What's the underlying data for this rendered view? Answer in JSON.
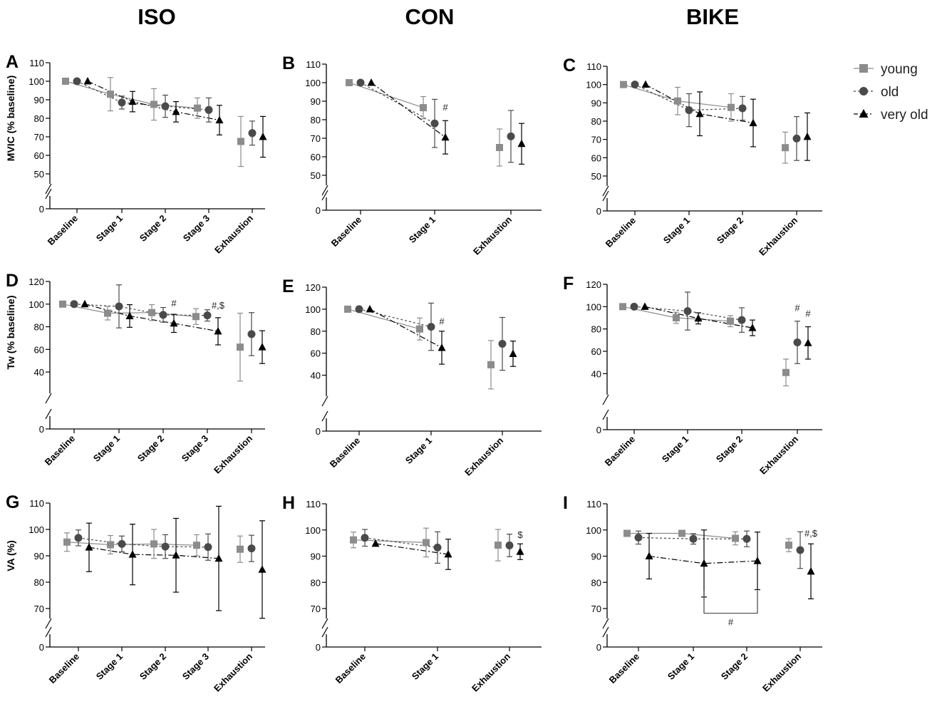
{
  "column_titles": [
    "ISO",
    "CON",
    "BIKE"
  ],
  "legend": {
    "entries": [
      {
        "label": "young",
        "marker": "square",
        "color": "#8c8c8c"
      },
      {
        "label": "old",
        "marker": "circle",
        "color": "#4a4a4a"
      },
      {
        "label": "very old",
        "marker": "triangle",
        "color": "#000000"
      }
    ]
  },
  "colors": {
    "young": "#8c8c8c",
    "old": "#4a4a4a",
    "very_old": "#000000"
  },
  "chart_data": [
    {
      "panel": "A",
      "type": "line",
      "ylabel": "MVIC (% baseline)",
      "axis_break": true,
      "ylim": [
        50,
        110
      ],
      "yticks": [
        0,
        50,
        60,
        70,
        80,
        90,
        100,
        110
      ],
      "categories": [
        "Baseline",
        "Stage 1",
        "Stage 2",
        "Stage 3",
        "Exhaustion"
      ],
      "series": [
        {
          "name": "young",
          "values": [
            100,
            93,
            87.5,
            85.5,
            67.5
          ],
          "errors": [
            0,
            9,
            8.5,
            5.5,
            13.5
          ]
        },
        {
          "name": "old",
          "values": [
            100,
            88.5,
            86.5,
            84.5,
            72
          ],
          "errors": [
            0,
            3.5,
            6,
            6.5,
            6.5
          ]
        },
        {
          "name": "very old",
          "values": [
            100,
            89,
            83.5,
            79,
            70
          ],
          "errors": [
            0,
            5.5,
            5.5,
            8,
            11
          ]
        }
      ],
      "annotations": []
    },
    {
      "panel": "B",
      "type": "line",
      "ylabel": "",
      "axis_break": true,
      "ylim": [
        50,
        110
      ],
      "yticks": [
        0,
        50,
        60,
        70,
        80,
        90,
        100,
        110
      ],
      "categories": [
        "Baseline",
        "Stage 1",
        "Exhaustion"
      ],
      "series": [
        {
          "name": "young",
          "values": [
            100,
            86.5,
            65
          ],
          "errors": [
            0,
            6,
            10
          ]
        },
        {
          "name": "old",
          "values": [
            100,
            78,
            71
          ],
          "errors": [
            0,
            13,
            14
          ]
        },
        {
          "name": "very old",
          "values": [
            100,
            70.5,
            67
          ],
          "errors": [
            0,
            9,
            11
          ]
        }
      ],
      "annotations": [
        {
          "text": "#",
          "category": 1,
          "series": 2,
          "value": 85
        }
      ]
    },
    {
      "panel": "C",
      "type": "line",
      "ylabel": "",
      "axis_break": true,
      "ylim": [
        50,
        110
      ],
      "yticks": [
        0,
        50,
        60,
        70,
        80,
        90,
        100,
        110
      ],
      "categories": [
        "Baseline",
        "Stage 1",
        "Stage 2",
        "Exhaustion"
      ],
      "series": [
        {
          "name": "young",
          "values": [
            100,
            91,
            87.5,
            65.5
          ],
          "errors": [
            0,
            7.5,
            7.5,
            8.5
          ]
        },
        {
          "name": "old",
          "values": [
            100,
            86,
            87,
            70.5
          ],
          "errors": [
            0,
            9,
            6.5,
            12
          ]
        },
        {
          "name": "very old",
          "values": [
            100,
            84,
            79,
            71.5
          ],
          "errors": [
            0,
            12,
            13,
            13
          ]
        }
      ],
      "annotations": []
    },
    {
      "panel": "D",
      "type": "line",
      "ylabel": "Tw (% baseline)",
      "axis_break": true,
      "ylim": [
        30,
        120
      ],
      "yticks": [
        0,
        40,
        60,
        80,
        100,
        120
      ],
      "categories": [
        "Baseline",
        "Stage 1",
        "Stage 2",
        "Stage 3",
        "Exhaustion"
      ],
      "series": [
        {
          "name": "young",
          "values": [
            100,
            92,
            92.5,
            89,
            62
          ],
          "errors": [
            0,
            6,
            7,
            7,
            30
          ]
        },
        {
          "name": "old",
          "values": [
            100,
            98,
            90.5,
            90,
            73.5
          ],
          "errors": [
            0,
            19,
            6.5,
            5,
            19
          ]
        },
        {
          "name": "very old",
          "values": [
            100,
            89.5,
            83,
            76,
            62
          ],
          "errors": [
            0,
            10,
            8,
            12,
            14.5
          ]
        }
      ],
      "annotations": [
        {
          "text": "#",
          "category": 2,
          "series": 2,
          "value": 98
        },
        {
          "text": "#,$",
          "category": 3,
          "series": 2,
          "value": 96
        }
      ]
    },
    {
      "panel": "E",
      "type": "line",
      "ylabel": "",
      "axis_break": true,
      "ylim": [
        30,
        120
      ],
      "yticks": [
        0,
        40,
        60,
        80,
        100,
        120
      ],
      "categories": [
        "Baseline",
        "Stage 1",
        "Exhaustion"
      ],
      "series": [
        {
          "name": "young",
          "values": [
            100,
            82,
            49.5
          ],
          "errors": [
            0,
            10,
            22
          ]
        },
        {
          "name": "old",
          "values": [
            100,
            84,
            68.5
          ],
          "errors": [
            0,
            21.5,
            24
          ]
        },
        {
          "name": "very old",
          "values": [
            100,
            65,
            59.5
          ],
          "errors": [
            0,
            15,
            11.5
          ]
        }
      ],
      "annotations": [
        {
          "text": "#",
          "category": 1,
          "series": 2,
          "value": 86
        }
      ]
    },
    {
      "panel": "F",
      "type": "line",
      "ylabel": "",
      "axis_break": true,
      "ylim": [
        30,
        120
      ],
      "yticks": [
        0,
        40,
        60,
        80,
        100,
        120
      ],
      "categories": [
        "Baseline",
        "Stage 1",
        "Stage 2",
        "Exhaustion"
      ],
      "series": [
        {
          "name": "young",
          "values": [
            100,
            90,
            87,
            41
          ],
          "errors": [
            0,
            5,
            5,
            12
          ]
        },
        {
          "name": "old",
          "values": [
            100,
            96,
            88,
            68
          ],
          "errors": [
            0,
            17,
            11,
            19
          ]
        },
        {
          "name": "very old",
          "values": [
            100,
            89.5,
            81,
            67.5
          ],
          "errors": [
            0,
            5,
            7,
            14.5
          ]
        }
      ],
      "annotations": [
        {
          "text": "#",
          "category": 3,
          "series": 1,
          "value": 96
        },
        {
          "text": "#",
          "category": 3,
          "series": 2,
          "value": 91
        }
      ]
    },
    {
      "panel": "G",
      "type": "line",
      "ylabel": "VA (%)",
      "axis_break": true,
      "ylim": [
        70,
        110
      ],
      "yticks": [
        0,
        70,
        80,
        90,
        100,
        110
      ],
      "categories": [
        "Baseline",
        "Stage 1",
        "Stage 2",
        "Stage 3",
        "Exhaustion"
      ],
      "series": [
        {
          "name": "young",
          "values": [
            95.2,
            94.2,
            94.5,
            94,
            92.5
          ],
          "errors": [
            3.5,
            3.5,
            5.5,
            4,
            5
          ]
        },
        {
          "name": "old",
          "values": [
            96.8,
            94.5,
            93.5,
            93.3,
            92.8
          ],
          "errors": [
            3,
            3,
            4.5,
            5,
            5
          ]
        },
        {
          "name": "very old",
          "values": [
            93.2,
            90.5,
            90.2,
            89,
            84.8
          ],
          "errors": [
            9.2,
            11.5,
            14,
            19.8,
            18.5
          ]
        }
      ],
      "annotations": []
    },
    {
      "panel": "H",
      "type": "line",
      "ylabel": "",
      "axis_break": true,
      "ylim": [
        70,
        110
      ],
      "yticks": [
        0,
        70,
        80,
        90,
        100,
        110
      ],
      "categories": [
        "Baseline",
        "Stage 1",
        "Exhaustion"
      ],
      "series": [
        {
          "name": "young",
          "values": [
            96.2,
            95.2,
            94.2
          ],
          "errors": [
            3,
            5.5,
            6
          ]
        },
        {
          "name": "old",
          "values": [
            97,
            93.3,
            94.1
          ],
          "errors": [
            3.2,
            6,
            4.3
          ]
        },
        {
          "name": "very old",
          "values": [
            94.8,
            90.7,
            91.7
          ],
          "errors": [
            0,
            5.8,
            3
          ]
        }
      ],
      "annotations": [
        {
          "text": "$",
          "category": 2,
          "series": 2,
          "value": 97
        }
      ]
    },
    {
      "panel": "I",
      "type": "line",
      "ylabel": "",
      "axis_break": true,
      "ylim": [
        70,
        110
      ],
      "yticks": [
        0,
        70,
        80,
        90,
        100,
        110
      ],
      "categories": [
        "Baseline",
        "Stage 1",
        "Stage 2",
        "Exhaustion"
      ],
      "series": [
        {
          "name": "young",
          "values": [
            98.7,
            98.7,
            96.8,
            94.2
          ],
          "errors": [
            0,
            0,
            2.5,
            2.5
          ]
        },
        {
          "name": "old",
          "values": [
            97.1,
            96.6,
            96.6,
            92.3
          ],
          "errors": [
            2.5,
            2,
            3,
            7
          ]
        },
        {
          "name": "very old",
          "values": [
            90,
            87.2,
            88.2,
            84.2
          ],
          "errors": [
            8.7,
            12.8,
            11,
            10.5
          ]
        }
      ],
      "annotations": [
        {
          "text": "#,$",
          "category": 3,
          "series": 2,
          "value": 97.5
        },
        {
          "text": "#",
          "bracket": [
            1,
            2
          ],
          "series": 2,
          "value": 68.2
        }
      ]
    }
  ]
}
